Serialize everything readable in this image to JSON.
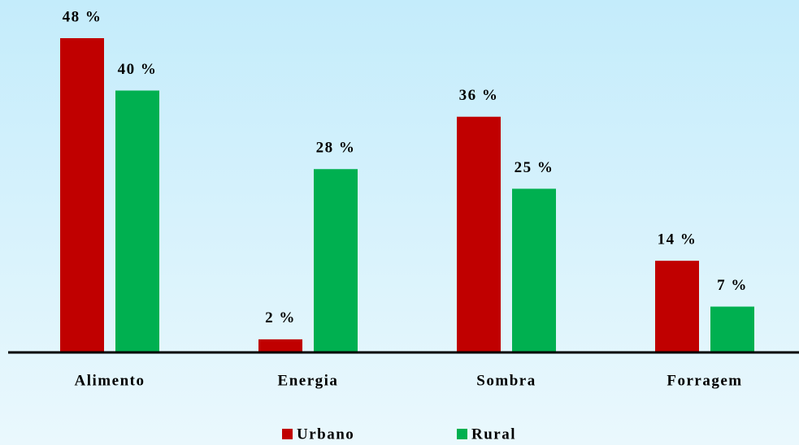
{
  "chart_data": {
    "type": "bar",
    "categories": [
      "Alimento",
      "Energia",
      "Sombra",
      "Forragem"
    ],
    "series": [
      {
        "name": "Urbano",
        "color": "#c00000",
        "values": [
          48,
          2,
          36,
          14
        ],
        "value_labels": [
          "48 %",
          "2 %",
          "36 %",
          "14 %"
        ]
      },
      {
        "name": "Rural",
        "color": "#00b050",
        "values": [
          40,
          28,
          25,
          7
        ],
        "value_labels": [
          "40 %",
          "28 %",
          "25 %",
          "7 %"
        ]
      }
    ],
    "legend": "bottom"
  }
}
